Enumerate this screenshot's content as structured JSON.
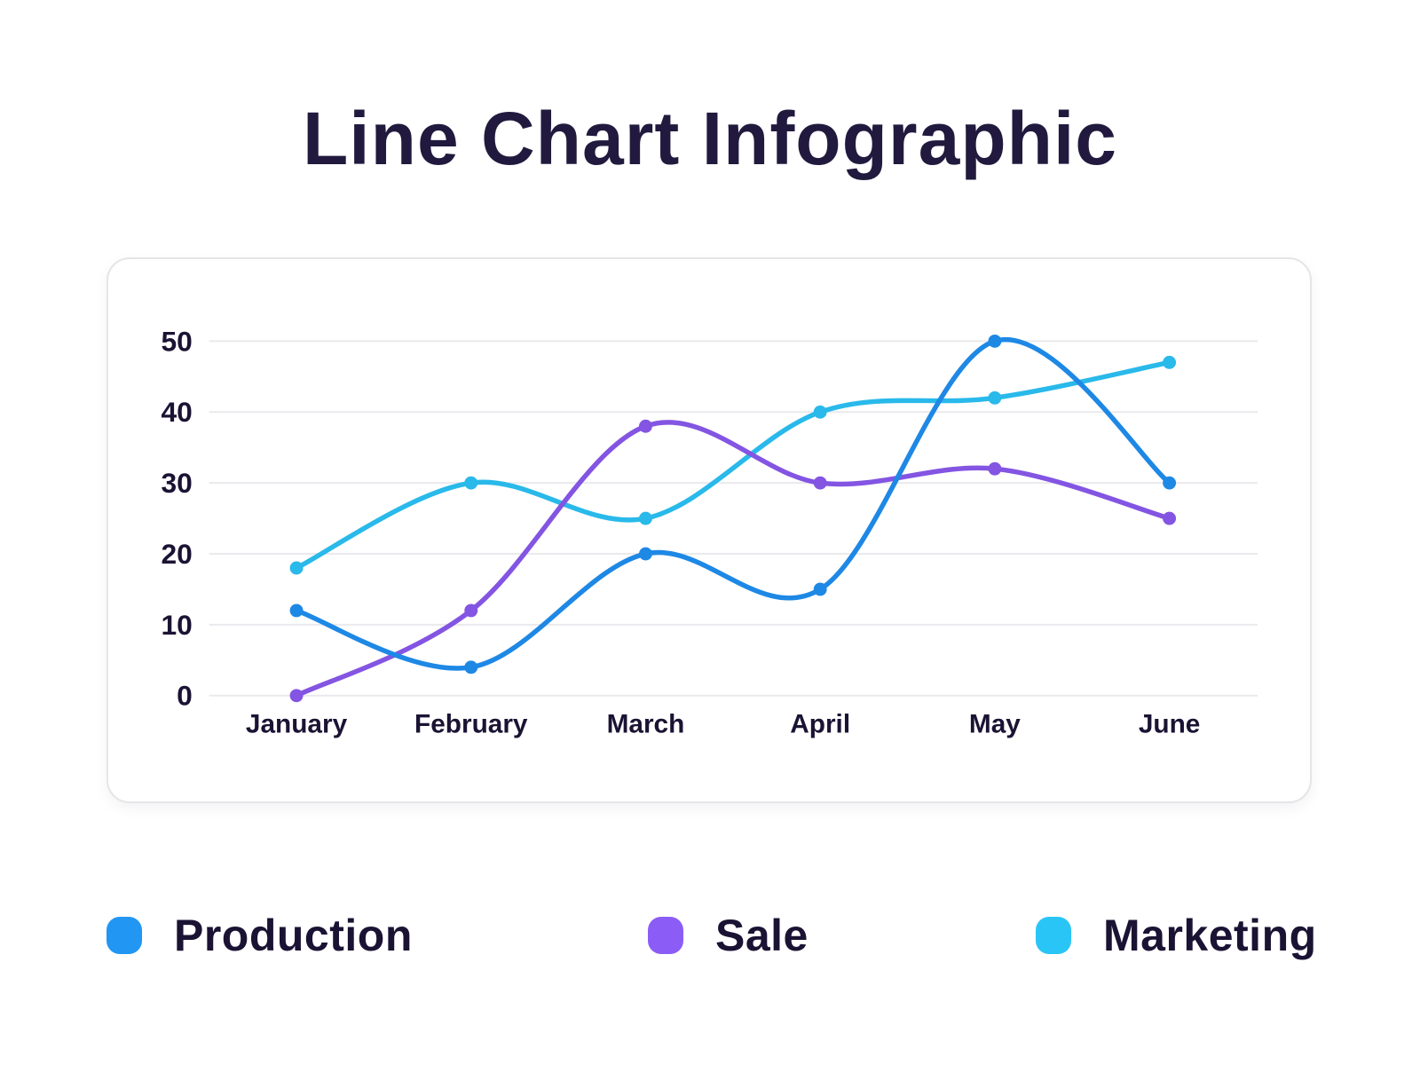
{
  "page": {
    "title": "Line Chart Infographic"
  },
  "chart_data": {
    "type": "line",
    "title": "Line Chart Infographic",
    "categories": [
      "January",
      "February",
      "March",
      "April",
      "May",
      "June"
    ],
    "series": [
      {
        "name": "Production",
        "color": "#1e88e5",
        "values": [
          12,
          4,
          20,
          15,
          50,
          30
        ]
      },
      {
        "name": "Sale",
        "color": "#8355e2",
        "values": [
          0,
          12,
          38,
          30,
          32,
          25
        ]
      },
      {
        "name": "Marketing",
        "color": "#29b9ea",
        "values": [
          18,
          30,
          25,
          40,
          42,
          47
        ]
      }
    ],
    "ylim": [
      0,
      50
    ],
    "yticks": [
      0,
      10,
      20,
      30,
      40,
      50
    ],
    "grid": "horizontal",
    "grid_color": "#eaeaee",
    "axis_text_color": "#1b1333",
    "legend_position": "bottom",
    "curve": "smooth"
  },
  "legend": {
    "items": [
      {
        "label": "Production",
        "color": "#2196f3"
      },
      {
        "label": "Sale",
        "color": "#8c5cf6"
      },
      {
        "label": "Marketing",
        "color": "#29c5f7"
      }
    ]
  }
}
